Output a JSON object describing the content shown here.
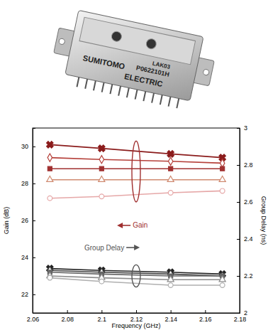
{
  "device": {
    "labels": [
      "LAK03",
      "P0622101H",
      "SUMITOMO",
      "ELECTRIC"
    ]
  },
  "chart_data": {
    "type": "line",
    "x_label": "Frequency (GHz)",
    "y_label": "Gain (dB)",
    "y2_label": "Group Delay (ns)",
    "annotations": [
      {
        "text": "Gain",
        "color": "#a03030"
      },
      {
        "text": "Group Delay",
        "color": "#555555"
      }
    ],
    "x": [
      2.07,
      2.1,
      2.14,
      2.17
    ],
    "xlim": [
      2.06,
      2.18
    ],
    "xticks": [
      2.06,
      2.08,
      2.1,
      2.12,
      2.14,
      2.16,
      2.18
    ],
    "ylim": [
      21,
      31
    ],
    "yticks": [
      22,
      24,
      26,
      28,
      30
    ],
    "y2lim": [
      2,
      3
    ],
    "y2ticks": [
      2,
      2.2,
      2.4,
      2.6,
      2.8,
      3
    ],
    "grid": false,
    "series": [
      {
        "color": "#8b1c1c",
        "marker": "x",
        "values": [
          30.1,
          29.9,
          29.6,
          29.4
        ]
      },
      {
        "color": "#b5403a",
        "marker": "diamond-open",
        "values": [
          29.4,
          29.3,
          29.2,
          29.1
        ]
      },
      {
        "color": "#a03030",
        "marker": "square",
        "values": [
          28.8,
          28.8,
          28.8,
          28.8
        ]
      },
      {
        "color": "#d08a70",
        "marker": "triangle-open",
        "values": [
          28.2,
          28.2,
          28.2,
          28.2
        ]
      },
      {
        "color": "#e6a8a8",
        "marker": "circle-open",
        "values": [
          27.2,
          27.3,
          27.5,
          27.6
        ]
      },
      {
        "color": "#222222",
        "marker": "x",
        "axis": "y2",
        "values": [
          2.24,
          2.23,
          2.22,
          2.21
        ]
      },
      {
        "color": "#444444",
        "marker": "diamond-open",
        "axis": "y2",
        "values": [
          2.23,
          2.22,
          2.21,
          2.2
        ]
      },
      {
        "color": "#666666",
        "marker": "square",
        "axis": "y2",
        "values": [
          2.22,
          2.21,
          2.2,
          2.2
        ]
      },
      {
        "color": "#8c8c8c",
        "marker": "triangle-open",
        "axis": "y2",
        "values": [
          2.2,
          2.19,
          2.18,
          2.18
        ]
      },
      {
        "color": "#b0b0b0",
        "marker": "circle-open",
        "axis": "y2",
        "values": [
          2.19,
          2.17,
          2.15,
          2.15
        ]
      }
    ]
  }
}
